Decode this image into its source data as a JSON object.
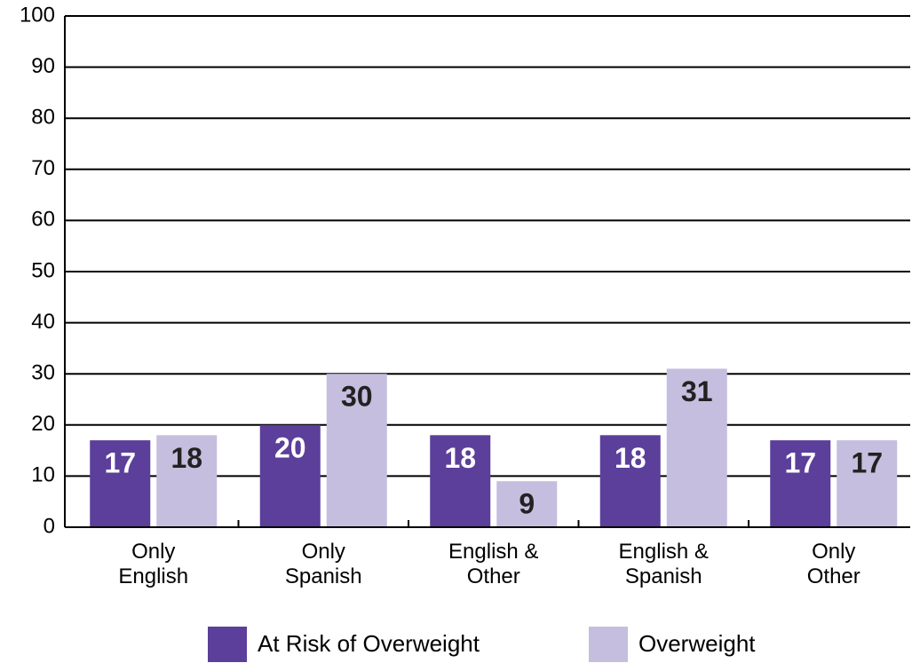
{
  "chart_data": {
    "type": "bar",
    "categories": [
      "Only\nEnglish",
      "Only\nSpanish",
      "English &\nOther",
      "English &\nSpanish",
      "Only\nOther"
    ],
    "series": [
      {
        "name": "At Risk of Overweight",
        "color": "#5b3f9a",
        "values": [
          17,
          20,
          18,
          18,
          17
        ]
      },
      {
        "name": "Overweight",
        "color": "#c5bedf",
        "values": [
          18,
          30,
          9,
          31,
          17
        ]
      }
    ],
    "ylim": [
      0,
      100
    ],
    "yticks": [
      0,
      10,
      20,
      30,
      40,
      50,
      60,
      70,
      80,
      90,
      100
    ],
    "grid": true,
    "legend": "bottom"
  }
}
